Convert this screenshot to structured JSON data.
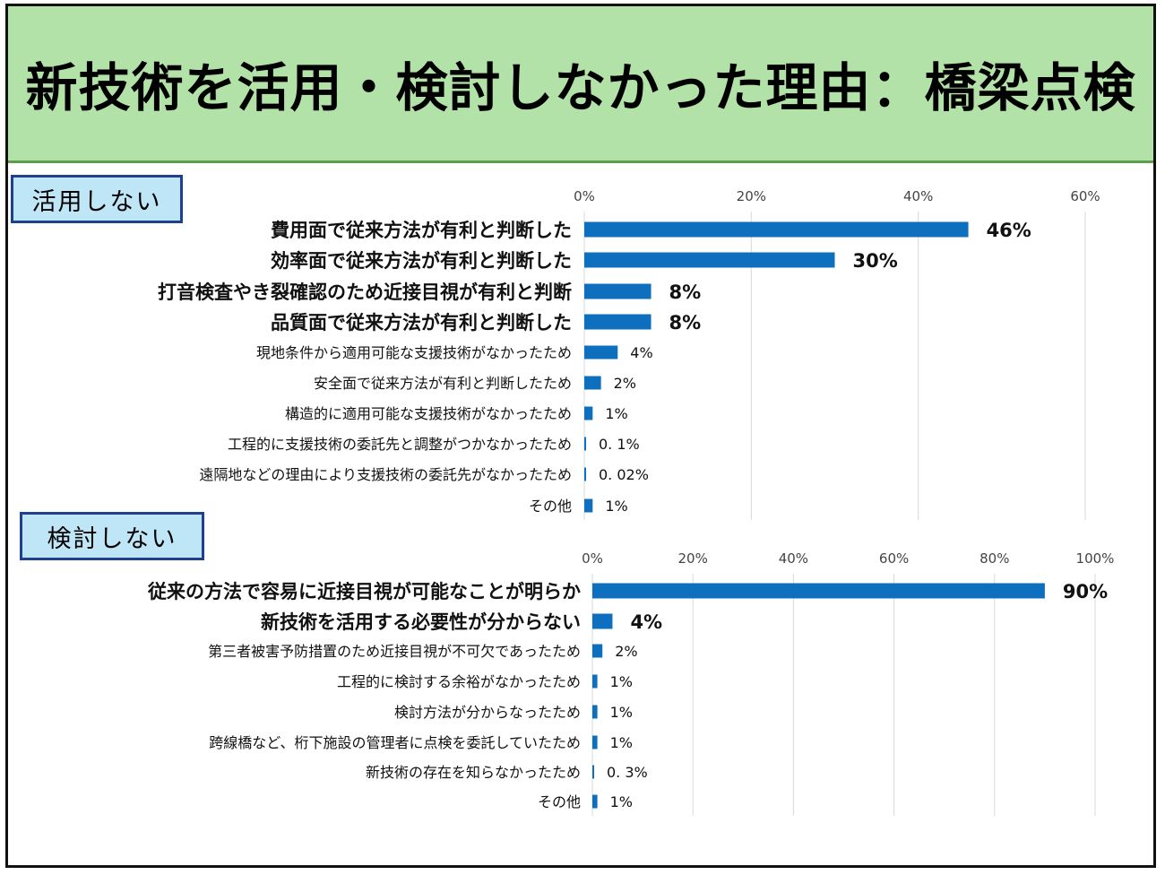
{
  "title": "新技術を活用・検討しなかった理由：橋梁点検",
  "chart_data": [
    {
      "type": "bar",
      "orientation": "horizontal",
      "title": "活用しない",
      "xlim": [
        0,
        60
      ],
      "ticks": [
        0,
        20,
        40,
        60
      ],
      "tick_labels": [
        "0%",
        "20%",
        "40%",
        "60%"
      ],
      "grid": true,
      "color": "#0f6fbf",
      "categories": [
        "費用面で従来方法が有利と判断した",
        "効率面で従来方法が有利と判断した",
        "打音検査やき裂確認のため近接目視が有利と判断",
        "品質面で従来方法が有利と判断した",
        "現地条件から適用可能な支援技術がなかったため",
        "安全面で従来方法が有利と判断したため",
        "構造的に適用可能な支援技術がなかったため",
        "工程的に支援技術の委託先と調整がつかなかったため",
        "遠隔地などの理由により支援技術の委託先がなかったため",
        "その他"
      ],
      "values": [
        46,
        30,
        8,
        8,
        4,
        2,
        1,
        0.1,
        0.02,
        1
      ],
      "value_labels": [
        "46%",
        "30%",
        "8%",
        "8%",
        "4%",
        "2%",
        "1%",
        "0. 1%",
        "0. 02%",
        "1%"
      ],
      "emphasis": [
        true,
        true,
        true,
        true,
        false,
        false,
        false,
        false,
        false,
        false
      ]
    },
    {
      "type": "bar",
      "orientation": "horizontal",
      "title": "検討しない",
      "xlim": [
        0,
        100
      ],
      "ticks": [
        0,
        20,
        40,
        60,
        80,
        100
      ],
      "tick_labels": [
        "0%",
        "20%",
        "40%",
        "60%",
        "80%",
        "100%"
      ],
      "grid": true,
      "color": "#0f6fbf",
      "categories": [
        "従来の方法で容易に近接目視が可能なことが明らか",
        "新技術を活用する必要性が分からない",
        "第三者被害予防措置のため近接目視が不可欠であったため",
        "工程的に検討する余裕がなかったため",
        "検討方法が分からなったため",
        "跨線橋など、桁下施設の管理者に点検を委託していたため",
        "新技術の存在を知らなかったため",
        "その他"
      ],
      "values": [
        90,
        4,
        2,
        1,
        1,
        1,
        0.3,
        1
      ],
      "value_labels": [
        "90%",
        "4%",
        "2%",
        "1%",
        "1%",
        "1%",
        "0. 3%",
        "1%"
      ],
      "emphasis": [
        true,
        true,
        false,
        false,
        false,
        false,
        false,
        false
      ]
    }
  ]
}
